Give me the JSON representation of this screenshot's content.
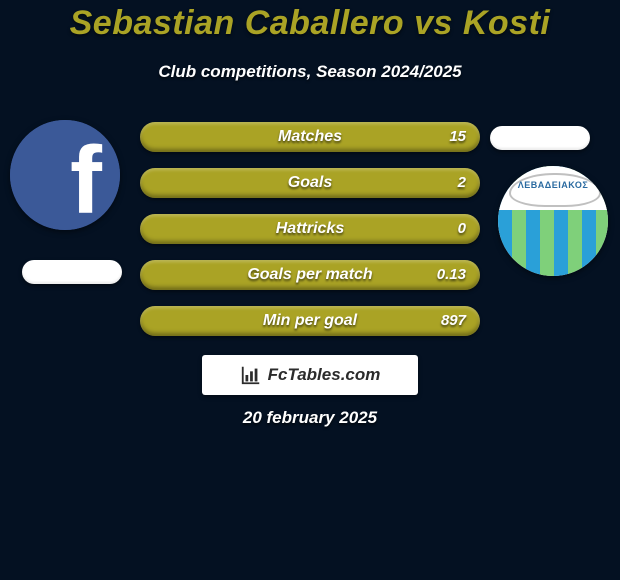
{
  "background_color": "#041122",
  "title": {
    "text": "Sebastian Caballero vs Kosti",
    "color": "#aaa325",
    "fontsize": 34
  },
  "subtitle": {
    "text": "Club competitions, Season 2024/2025",
    "color": "#ffffff",
    "fontsize": 17
  },
  "date": "20 february 2025",
  "brand": "FcTables.com",
  "players": {
    "left": {
      "avatar": "facebook-icon"
    },
    "right": {
      "avatar": "club-badge",
      "badge_text": "ΛΕΒΑΔΕΙΑΚΟΣ"
    }
  },
  "bars": {
    "bar_color": "#aaa325",
    "text_color": "#ffffff",
    "label_fontsize": 16,
    "value_fontsize": 15,
    "rows": [
      {
        "label": "Matches",
        "left": "",
        "right": "15"
      },
      {
        "label": "Goals",
        "left": "",
        "right": "2"
      },
      {
        "label": "Hattricks",
        "left": "",
        "right": "0"
      },
      {
        "label": "Goals per match",
        "left": "",
        "right": "0.13"
      },
      {
        "label": "Min per goal",
        "left": "",
        "right": "897"
      }
    ]
  }
}
